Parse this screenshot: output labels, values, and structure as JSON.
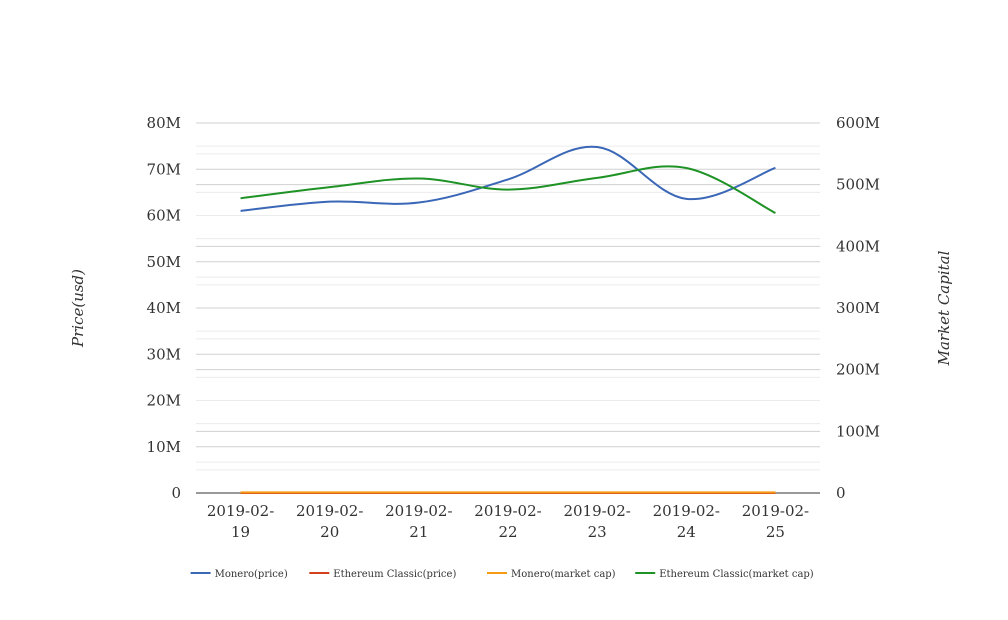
{
  "chart_data": {
    "type": "line",
    "categories": [
      "2019-02-19",
      "2019-02-20",
      "2019-02-21",
      "2019-02-22",
      "2019-02-23",
      "2019-02-24",
      "2019-02-25"
    ],
    "category_lines": [
      [
        "2019-02-",
        "19"
      ],
      [
        "2019-02-",
        "20"
      ],
      [
        "2019-02-",
        "21"
      ],
      [
        "2019-02-",
        "22"
      ],
      [
        "2019-02-",
        "23"
      ],
      [
        "2019-02-",
        "24"
      ],
      [
        "2019-02-",
        "25"
      ]
    ],
    "y_left": {
      "label": "Price(usd)",
      "range": [
        0,
        80000000
      ],
      "ticks": [
        "0",
        "10M",
        "20M",
        "30M",
        "40M",
        "50M",
        "60M",
        "70M",
        "80M"
      ]
    },
    "y_right": {
      "label": "Market Capital",
      "range": [
        0,
        600000000
      ],
      "ticks": [
        "0",
        "100M",
        "200M",
        "300M",
        "400M",
        "500M",
        "600M"
      ]
    },
    "grid": true,
    "legend_position": "bottom",
    "series": [
      {
        "name": "Monero(price)",
        "axis": "left",
        "color": "#3b67b7",
        "values": [
          61000000,
          63000000,
          62800000,
          67800000,
          74800000,
          63600000,
          70300000
        ]
      },
      {
        "name": "Ethereum Classic(price)",
        "axis": "left",
        "color": "#d4401d",
        "values": [
          5,
          5,
          5,
          5,
          5,
          5,
          5
        ]
      },
      {
        "name": "Monero(market cap)",
        "axis": "right",
        "color": "#f59a15",
        "values": [
          1000000,
          1000000,
          1000000,
          1000000,
          1000000,
          1000000,
          1000000
        ]
      },
      {
        "name": "Ethereum Classic(market cap)",
        "axis": "right",
        "color": "#1e9225",
        "values": [
          478000000,
          496000000,
          510000000,
          492000000,
          511000000,
          527000000,
          454000000
        ]
      }
    ]
  }
}
